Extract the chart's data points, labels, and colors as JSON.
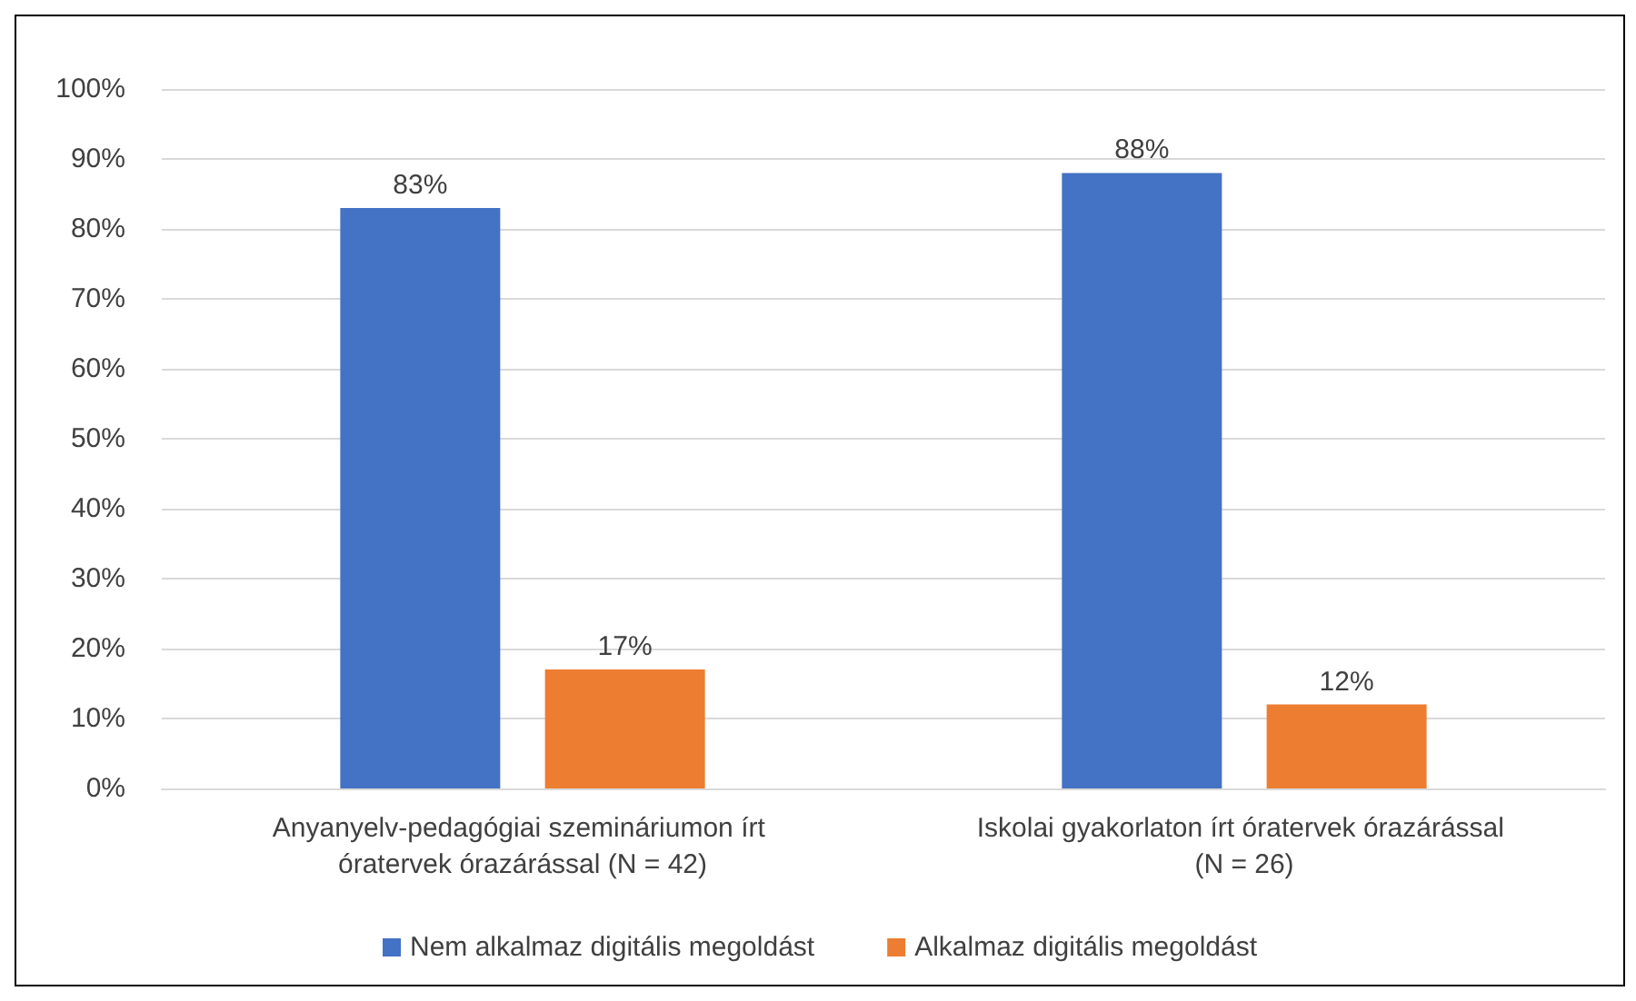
{
  "chart_data": {
    "type": "bar",
    "categories": [
      "Anyanyelv-pedagógiai szemináriumon írt óratervek órazárással (N = 42)",
      "Iskolai gyakorlaton írt óratervek órazárással (N = 26)"
    ],
    "series": [
      {
        "name": "Nem alkalmaz digitális megoldást",
        "color": "#4472c4",
        "values": [
          83,
          88
        ],
        "value_labels": [
          "83%",
          "88%"
        ]
      },
      {
        "name": "Alkalmaz digitális megoldást",
        "color": "#ed7d31",
        "values": [
          17,
          12
        ],
        "value_labels": [
          "17%",
          "12%"
        ]
      }
    ],
    "ylim": [
      0,
      100
    ],
    "yticks": [
      {
        "value": 0,
        "label": "0%"
      },
      {
        "value": 10,
        "label": "10%"
      },
      {
        "value": 20,
        "label": "20%"
      },
      {
        "value": 30,
        "label": "30%"
      },
      {
        "value": 40,
        "label": "40%"
      },
      {
        "value": 50,
        "label": "50%"
      },
      {
        "value": 60,
        "label": "60%"
      },
      {
        "value": 70,
        "label": "70%"
      },
      {
        "value": 80,
        "label": "80%"
      },
      {
        "value": 90,
        "label": "90%"
      },
      {
        "value": 100,
        "label": "100%"
      }
    ],
    "grid": "y",
    "legend": "bottom"
  }
}
